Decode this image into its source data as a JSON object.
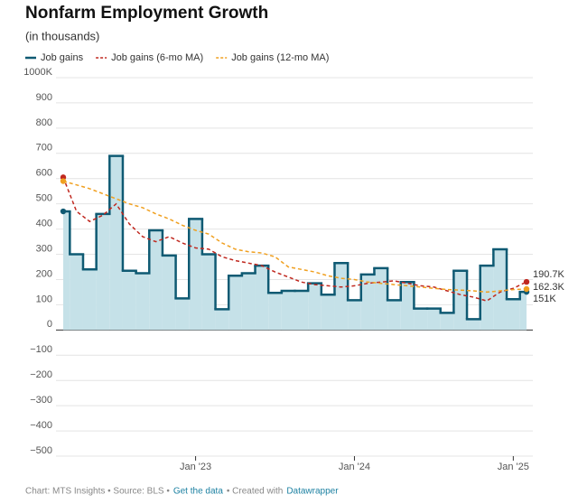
{
  "chart_data": {
    "type": "step-line",
    "title": "Nonfarm Employment Growth",
    "subtitle": "(in thousands)",
    "x": [
      "2022-03",
      "2022-04",
      "2022-05",
      "2022-06",
      "2022-07",
      "2022-08",
      "2022-09",
      "2022-10",
      "2022-11",
      "2022-12",
      "2023-01",
      "2023-02",
      "2023-03",
      "2023-04",
      "2023-05",
      "2023-06",
      "2023-07",
      "2023-08",
      "2023-09",
      "2023-10",
      "2023-11",
      "2023-12",
      "2024-01",
      "2024-02",
      "2024-03",
      "2024-04",
      "2024-05",
      "2024-06",
      "2024-07",
      "2024-08",
      "2024-09",
      "2024-10",
      "2024-11",
      "2024-12",
      "2025-01",
      "2025-02"
    ],
    "xticks": [
      {
        "value": "2023-01",
        "label": "Jan '23"
      },
      {
        "value": "2024-01",
        "label": "Jan '24"
      },
      {
        "value": "2025-01",
        "label": "Jan '25"
      }
    ],
    "series": [
      {
        "name": "Job gains",
        "color": "#0f5a73",
        "fill": "#c5e1e8",
        "style": "step",
        "values": [
          470,
          300,
          240,
          460,
          690,
          235,
          225,
          395,
          295,
          125,
          440,
          300,
          82,
          215,
          225,
          255,
          147,
          155,
          155,
          185,
          140,
          265,
          118,
          220,
          245,
          118,
          190,
          85,
          85,
          68,
          235,
          43,
          255,
          320,
          122,
          151
        ],
        "value_labels": [
          null,
          null,
          null,
          null,
          null,
          null,
          null,
          null,
          null,
          null,
          null,
          null,
          null,
          null,
          null,
          null,
          null,
          null,
          null,
          null,
          null,
          null,
          null,
          null,
          null,
          null,
          null,
          null,
          null,
          null,
          null,
          null,
          null,
          null,
          null,
          "151K"
        ]
      },
      {
        "name": "Job gains (6-mo MA)",
        "color": "#c0281f",
        "style": "dashed",
        "values": [
          605,
          470,
          430,
          455,
          500,
          420,
          370,
          350,
          370,
          345,
          325,
          320,
          290,
          275,
          265,
          255,
          230,
          210,
          190,
          180,
          175,
          170,
          175,
          185,
          190,
          195,
          185,
          175,
          170,
          155,
          140,
          130,
          115,
          150,
          165,
          190.7
        ],
        "value_labels": [
          null,
          null,
          null,
          null,
          null,
          null,
          null,
          null,
          null,
          null,
          null,
          null,
          null,
          null,
          null,
          null,
          null,
          null,
          null,
          null,
          null,
          null,
          null,
          null,
          null,
          null,
          null,
          null,
          null,
          null,
          null,
          null,
          null,
          null,
          null,
          "190.7K"
        ]
      },
      {
        "name": "Job gains (12-mo MA)",
        "color": "#f0a020",
        "style": "dashed",
        "values": [
          590,
          575,
          560,
          540,
          520,
          500,
          485,
          460,
          440,
          415,
          395,
          380,
          345,
          320,
          310,
          305,
          290,
          250,
          240,
          230,
          215,
          205,
          200,
          190,
          185,
          180,
          175,
          170,
          165,
          160,
          158,
          155,
          150,
          155,
          160,
          162.3
        ],
        "value_labels": [
          null,
          null,
          null,
          null,
          null,
          null,
          null,
          null,
          null,
          null,
          null,
          null,
          null,
          null,
          null,
          null,
          null,
          null,
          null,
          null,
          null,
          null,
          null,
          null,
          null,
          null,
          null,
          null,
          null,
          null,
          null,
          null,
          null,
          null,
          null,
          "162.3K"
        ]
      }
    ],
    "ylim": [
      -500,
      1000
    ],
    "yticks": [
      {
        "value": -500,
        "label": "−500"
      },
      {
        "value": -400,
        "label": "−400"
      },
      {
        "value": -300,
        "label": "−300"
      },
      {
        "value": -200,
        "label": "−200"
      },
      {
        "value": -100,
        "label": "−100"
      },
      0,
      100,
      200,
      300,
      400,
      500,
      600,
      700,
      800,
      900,
      {
        "value": 1000,
        "label": "1000K"
      }
    ],
    "grid": true,
    "legend": "top-left",
    "footer": [
      "Chart: MTS Insights • Source: BLS •",
      "Get the data",
      "• Created with",
      "Datawrapper"
    ]
  }
}
